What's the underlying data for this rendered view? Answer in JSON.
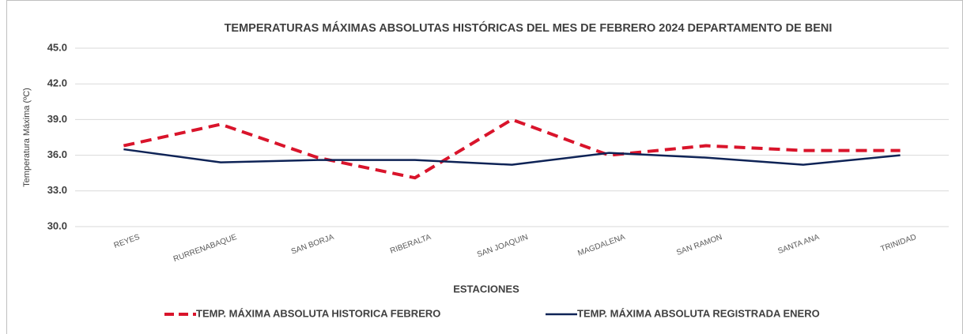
{
  "chart_data": {
    "type": "line",
    "title": "TEMPERATURAS MÁXIMAS ABSOLUTAS HISTÓRICAS DEL MES DE  FEBRERO 2024 DEPARTAMENTO DE BENI",
    "x_label": "ESTACIONES",
    "y_label": "Temperatura Máxima (ºC)",
    "categories": [
      "REYES",
      "RURRENABAQUE",
      "SAN BORJA",
      "RIBERALTA",
      "SAN JOAQUIN",
      "MAGDALENA",
      "SAN RAMON",
      "SANTA ANA",
      "TRINIDAD"
    ],
    "series": [
      {
        "name": "TEMP. MÁXIMA ABSOLUTA HISTORICA FEBRERO",
        "color": "#d9142b",
        "dashed": true,
        "values": [
          36.8,
          38.6,
          35.8,
          34.1,
          39.0,
          36.0,
          36.8,
          36.4,
          36.4
        ]
      },
      {
        "name": "TEMP. MÁXIMA ABSOLUTA REGISTRADA ENERO",
        "color": "#0e2356",
        "dashed": false,
        "values": [
          36.5,
          35.4,
          35.6,
          35.6,
          35.2,
          36.2,
          35.8,
          35.2,
          36.0
        ]
      }
    ],
    "ylim": [
      30,
      45
    ],
    "yticks": [
      {
        "value": 30,
        "label": "30.0"
      },
      {
        "value": 33,
        "label": "33.0"
      },
      {
        "value": 36,
        "label": "36.0"
      },
      {
        "value": 39,
        "label": "39.0"
      },
      {
        "value": 42,
        "label": "42.0"
      },
      {
        "value": 45,
        "label": "45.0"
      }
    ],
    "grid": true,
    "legend": "bottom"
  }
}
